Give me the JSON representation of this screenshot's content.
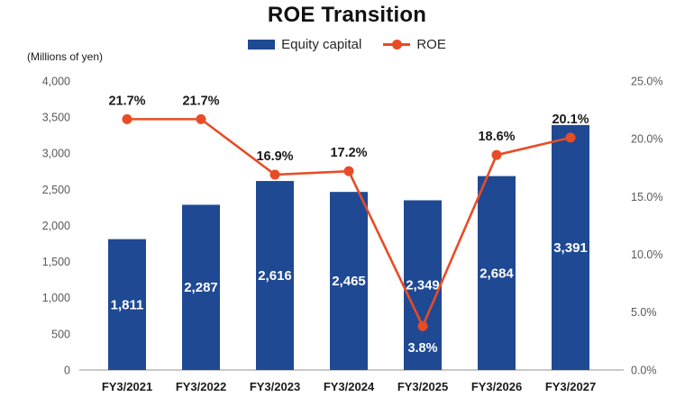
{
  "title": "ROE Transition",
  "axis_note": "(Millions of yen)",
  "legend": {
    "bar_label": "Equity capital",
    "line_label": "ROE"
  },
  "colors": {
    "bar": "#1F4993",
    "line": "#E84C25",
    "axis_text": "#595959",
    "dark_text": "#1A1A1A",
    "bar_value_text": "#FFFFFF",
    "axis_line": "#A6A6A6"
  },
  "chart_data": {
    "type": "bar",
    "subtype": "combo-bar-line",
    "title": "ROE Transition",
    "categories": [
      "FY3/2021",
      "FY3/2022",
      "FY3/2023",
      "FY3/2024",
      "FY3/2025",
      "FY3/2026",
      "FY3/2027"
    ],
    "series": [
      {
        "name": "Equity capital",
        "type": "bar",
        "axis": "left",
        "values": [
          1811,
          2287,
          2616,
          2465,
          2349,
          2684,
          3391
        ],
        "labels": [
          "1,811",
          "2,287",
          "2,616",
          "2,465",
          "2,349",
          "2,684",
          "3,391"
        ]
      },
      {
        "name": "ROE",
        "type": "line",
        "axis": "right",
        "values": [
          21.7,
          21.7,
          16.9,
          17.2,
          3.8,
          18.6,
          20.1
        ],
        "labels": [
          "21.7%",
          "21.7%",
          "16.9%",
          "17.2%",
          "3.8%",
          "18.6%",
          "20.1%"
        ]
      }
    ],
    "left_axis": {
      "label": "(Millions of yen)",
      "min": 0,
      "max": 4000,
      "step": 500,
      "ticks": [
        "0",
        "500",
        "1,000",
        "1,500",
        "2,000",
        "2,500",
        "3,000",
        "3,500",
        "4,000"
      ]
    },
    "right_axis": {
      "min": 0,
      "max": 25,
      "step": 5,
      "ticks": [
        "0.0%",
        "5.0%",
        "10.0%",
        "15.0%",
        "20.0%",
        "25.0%"
      ]
    },
    "grid": false,
    "legend_position": "top-center"
  }
}
